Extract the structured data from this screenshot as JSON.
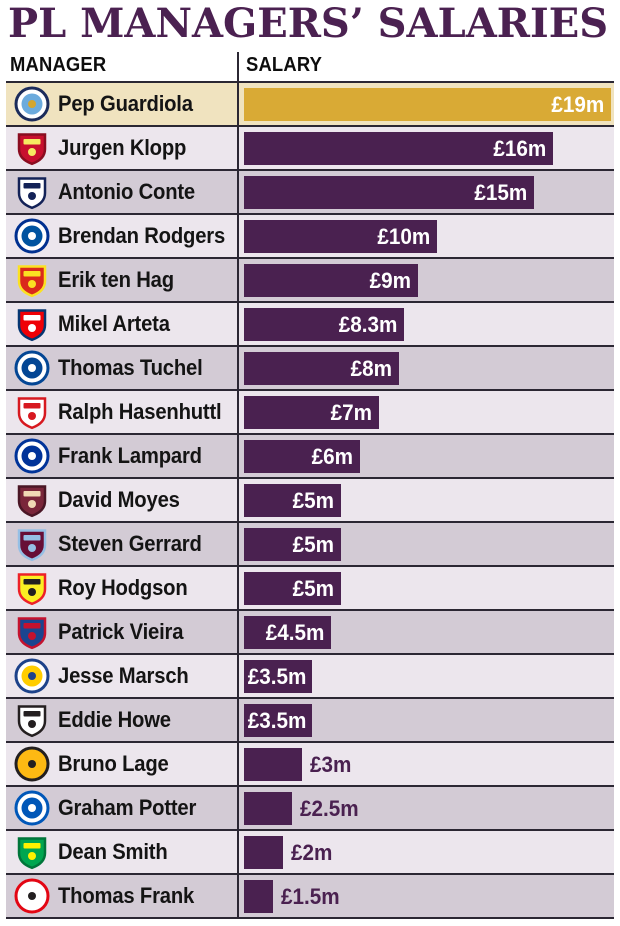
{
  "title": "PL MANAGERS’ SALARIES",
  "header": {
    "manager_col": "MANAGER",
    "salary_col": "SALARY"
  },
  "chart_data": {
    "type": "bar",
    "orientation": "horizontal",
    "title": "PL MANAGERS’ SALARIES",
    "columns": [
      "MANAGER",
      "SALARY"
    ],
    "categories": [
      "Pep Guardiola",
      "Jurgen Klopp",
      "Antonio Conte",
      "Brendan Rodgers",
      "Erik ten Hag",
      "Mikel Arteta",
      "Thomas Tuchel",
      "Ralph Hasenhuttl",
      "Frank Lampard",
      "David Moyes",
      "Steven Gerrard",
      "Roy Hodgson",
      "Patrick Vieira",
      "Jesse Marsch",
      "Eddie Howe",
      "Bruno Lage",
      "Graham Potter",
      "Dean Smith",
      "Thomas Frank"
    ],
    "clubs": [
      "Manchester City",
      "Liverpool",
      "Tottenham Hotspur",
      "Leicester City",
      "Manchester United",
      "Arsenal",
      "Chelsea",
      "Southampton",
      "Everton",
      "West Ham United",
      "Aston Villa",
      "Watford",
      "Crystal Palace",
      "Leeds United",
      "Newcastle United",
      "Wolverhampton Wanderers",
      "Brighton & Hove Albion",
      "Norwich City",
      "Brentford"
    ],
    "values": [
      19,
      16,
      15,
      10,
      9,
      8.3,
      8,
      7,
      6,
      5,
      5,
      5,
      4.5,
      3.5,
      3.5,
      3,
      2.5,
      2,
      1.5
    ],
    "value_labels": [
      "£19m",
      "£16m",
      "£15m",
      "£10m",
      "£9m",
      "£8.3m",
      "£8m",
      "£7m",
      "£6m",
      "£5m",
      "£5m",
      "£5m",
      "£4.5m",
      "£3.5m",
      "£3.5m",
      "£3m",
      "£2.5m",
      "£2m",
      "£1.5m"
    ],
    "xlim": [
      0,
      19
    ],
    "grid": false,
    "legend": "none",
    "bar_color": "#4a2150",
    "highlight": {
      "index": 0,
      "bar_color": "#d9aa35",
      "row_bg": "#f0e3bf"
    },
    "row_bg_alternate": [
      "#ece6ed",
      "#d3cbd5"
    ],
    "divider_color": "#2b2733",
    "title_color": "#4b2151",
    "value_label_inside_color": "#ffffff",
    "value_label_outside_color": "#4a2150"
  },
  "crests": [
    {
      "id": "manchester-city",
      "shape": "circle",
      "ring": "#1c2c5b",
      "badge": "#ffffff",
      "field": "#6cabdd",
      "detail": "#d4a62f"
    },
    {
      "id": "liverpool",
      "shape": "shield",
      "ring": "#8a0d20",
      "badge": "#c8102e",
      "field": "#c8102e",
      "detail": "#f6eb61"
    },
    {
      "id": "tottenham",
      "shape": "shield",
      "ring": "#132257",
      "badge": "#ffffff",
      "field": "#ffffff",
      "detail": "#132257"
    },
    {
      "id": "leicester",
      "shape": "circle",
      "ring": "#003090",
      "badge": "#ffffff",
      "field": "#0053a0",
      "detail": "#ffffff"
    },
    {
      "id": "manchester-united",
      "shape": "shield",
      "ring": "#fbe122",
      "badge": "#da291c",
      "field": "#da291c",
      "detail": "#fbe122"
    },
    {
      "id": "arsenal",
      "shape": "shield",
      "ring": "#063672",
      "badge": "#ef0107",
      "field": "#ef0107",
      "detail": "#ffffff"
    },
    {
      "id": "chelsea",
      "shape": "circle",
      "ring": "#034694",
      "badge": "#ffffff",
      "field": "#034694",
      "detail": "#ffffff"
    },
    {
      "id": "southampton",
      "shape": "shield",
      "ring": "#d71920",
      "badge": "#ffffff",
      "field": "#ffffff",
      "detail": "#d71920"
    },
    {
      "id": "everton",
      "shape": "circle",
      "ring": "#003399",
      "badge": "#ffffff",
      "field": "#003399",
      "detail": "#ffffff"
    },
    {
      "id": "west-ham",
      "shape": "shield",
      "ring": "#4a1625",
      "badge": "#7a263a",
      "field": "#7a263a",
      "detail": "#f0d9b5"
    },
    {
      "id": "aston-villa",
      "shape": "shield",
      "ring": "#95bfe5",
      "badge": "#670e36",
      "field": "#670e36",
      "detail": "#95bfe5"
    },
    {
      "id": "watford",
      "shape": "shield",
      "ring": "#ed2127",
      "badge": "#fbee23",
      "field": "#fbee23",
      "detail": "#231f20"
    },
    {
      "id": "crystal-palace",
      "shape": "shield",
      "ring": "#c4122e",
      "badge": "#1b458f",
      "field": "#1b458f",
      "detail": "#c4122e"
    },
    {
      "id": "leeds",
      "shape": "circle",
      "ring": "#1d428a",
      "badge": "#ffffff",
      "field": "#ffcd00",
      "detail": "#1d428a"
    },
    {
      "id": "newcastle",
      "shape": "shield",
      "ring": "#241f20",
      "badge": "#ffffff",
      "field": "#ffffff",
      "detail": "#241f20"
    },
    {
      "id": "wolves",
      "shape": "circle",
      "ring": "#231f20",
      "badge": "#fdb913",
      "field": "#fdb913",
      "detail": "#231f20"
    },
    {
      "id": "brighton",
      "shape": "circle",
      "ring": "#0057b8",
      "badge": "#ffffff",
      "field": "#0057b8",
      "detail": "#ffffff"
    },
    {
      "id": "norwich",
      "shape": "shield",
      "ring": "#00753a",
      "badge": "#00a650",
      "field": "#00a650",
      "detail": "#fff200"
    },
    {
      "id": "brentford",
      "shape": "circle",
      "ring": "#e30613",
      "badge": "#ffffff",
      "field": "#ffffff",
      "detail": "#231f20"
    }
  ]
}
